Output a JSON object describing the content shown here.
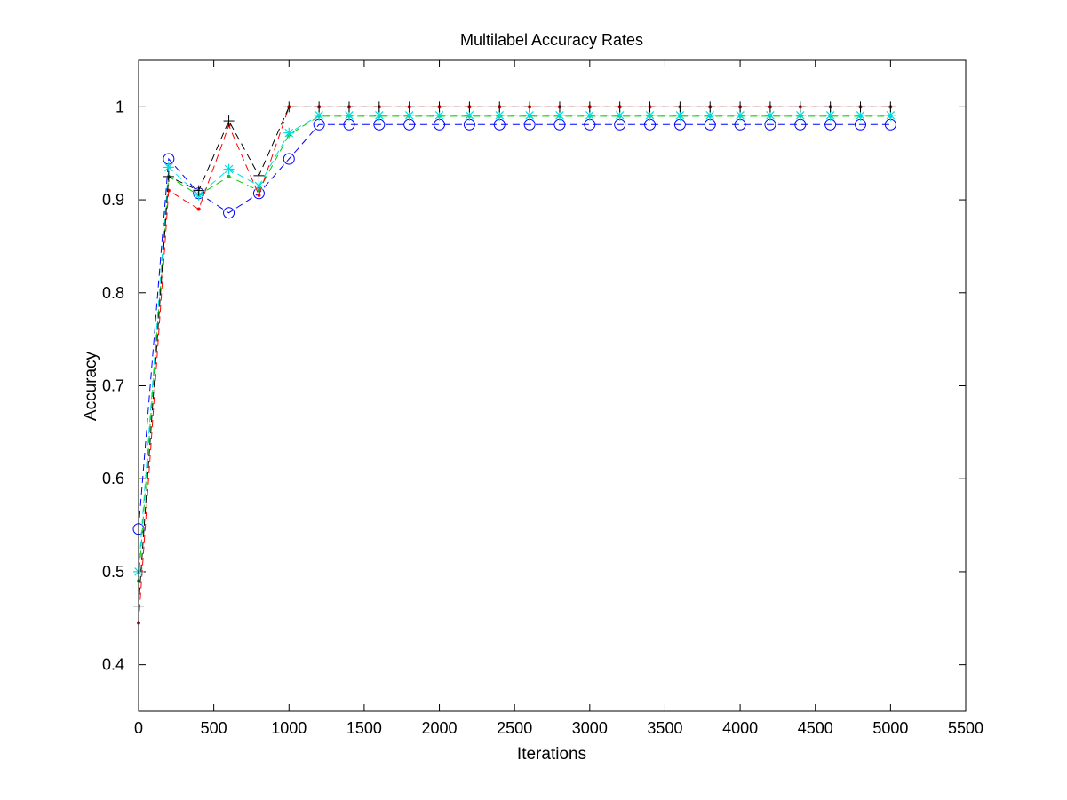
{
  "chart_data": {
    "type": "line",
    "title": "Multilabel Accuracy Rates",
    "xlabel": "Iterations",
    "ylabel": "Accuracy",
    "xlim": [
      0,
      5500
    ],
    "ylim": [
      0.35,
      1.05
    ],
    "xticks": [
      0,
      500,
      1000,
      1500,
      2000,
      2500,
      3000,
      3500,
      4000,
      4500,
      5000,
      5500
    ],
    "yticks": [
      0.4,
      0.5,
      0.6,
      0.7,
      0.8,
      0.9,
      1
    ],
    "xtick_labels": [
      "0",
      "500",
      "1000",
      "1500",
      "2000",
      "2500",
      "3000",
      "3500",
      "4000",
      "4500",
      "5000",
      "5500"
    ],
    "ytick_labels": [
      "0.4",
      "0.5",
      "0.6",
      "0.7",
      "0.8",
      "0.9",
      "1"
    ],
    "grid": false,
    "x": [
      0,
      200,
      400,
      600,
      800,
      1000,
      1200,
      1400,
      1600,
      1800,
      2000,
      2200,
      2400,
      2600,
      2800,
      3000,
      3200,
      3400,
      3600,
      3800,
      4000,
      4200,
      4400,
      4600,
      4800,
      5000
    ],
    "series": [
      {
        "color": "#0000ff",
        "marker": "circle",
        "linestyle": "dashed",
        "values": [
          0.546,
          0.944,
          0.907,
          0.886,
          0.907,
          0.944,
          0.981,
          0.981,
          0.981,
          0.981,
          0.981,
          0.981,
          0.981,
          0.981,
          0.981,
          0.981,
          0.981,
          0.981,
          0.981,
          0.981,
          0.981,
          0.981,
          0.981,
          0.981,
          0.981,
          0.981
        ]
      },
      {
        "color": "#00cc00",
        "marker": "point",
        "linestyle": "dashed",
        "values": [
          0.49,
          0.925,
          0.905,
          0.925,
          0.91,
          0.97,
          0.99,
          0.99,
          0.99,
          0.99,
          0.99,
          0.99,
          0.99,
          0.99,
          0.99,
          0.99,
          0.99,
          0.99,
          0.99,
          0.99,
          0.99,
          0.99,
          0.99,
          0.99,
          0.99,
          0.99
        ]
      },
      {
        "color": "#00dddd",
        "marker": "star",
        "linestyle": "dashed",
        "values": [
          0.5,
          0.935,
          0.905,
          0.933,
          0.915,
          0.972,
          0.991,
          0.991,
          0.991,
          0.991,
          0.991,
          0.991,
          0.991,
          0.991,
          0.991,
          0.991,
          0.991,
          0.991,
          0.991,
          0.991,
          0.991,
          0.991,
          0.991,
          0.991,
          0.991,
          0.991
        ]
      },
      {
        "color": "#ff0000",
        "marker": "point",
        "linestyle": "dashed",
        "values": [
          0.445,
          0.91,
          0.89,
          0.98,
          0.905,
          1.0,
          1.0,
          1.0,
          1.0,
          1.0,
          1.0,
          1.0,
          1.0,
          1.0,
          1.0,
          1.0,
          1.0,
          1.0,
          1.0,
          1.0,
          1.0,
          1.0,
          1.0,
          1.0,
          1.0,
          1.0
        ]
      },
      {
        "color": "#000000",
        "marker": "plus",
        "linestyle": "dashed",
        "values": [
          0.463,
          0.925,
          0.91,
          0.985,
          0.926,
          1.0,
          1.0,
          1.0,
          1.0,
          1.0,
          1.0,
          1.0,
          1.0,
          1.0,
          1.0,
          1.0,
          1.0,
          1.0,
          1.0,
          1.0,
          1.0,
          1.0,
          1.0,
          1.0,
          1.0,
          1.0
        ]
      }
    ]
  }
}
